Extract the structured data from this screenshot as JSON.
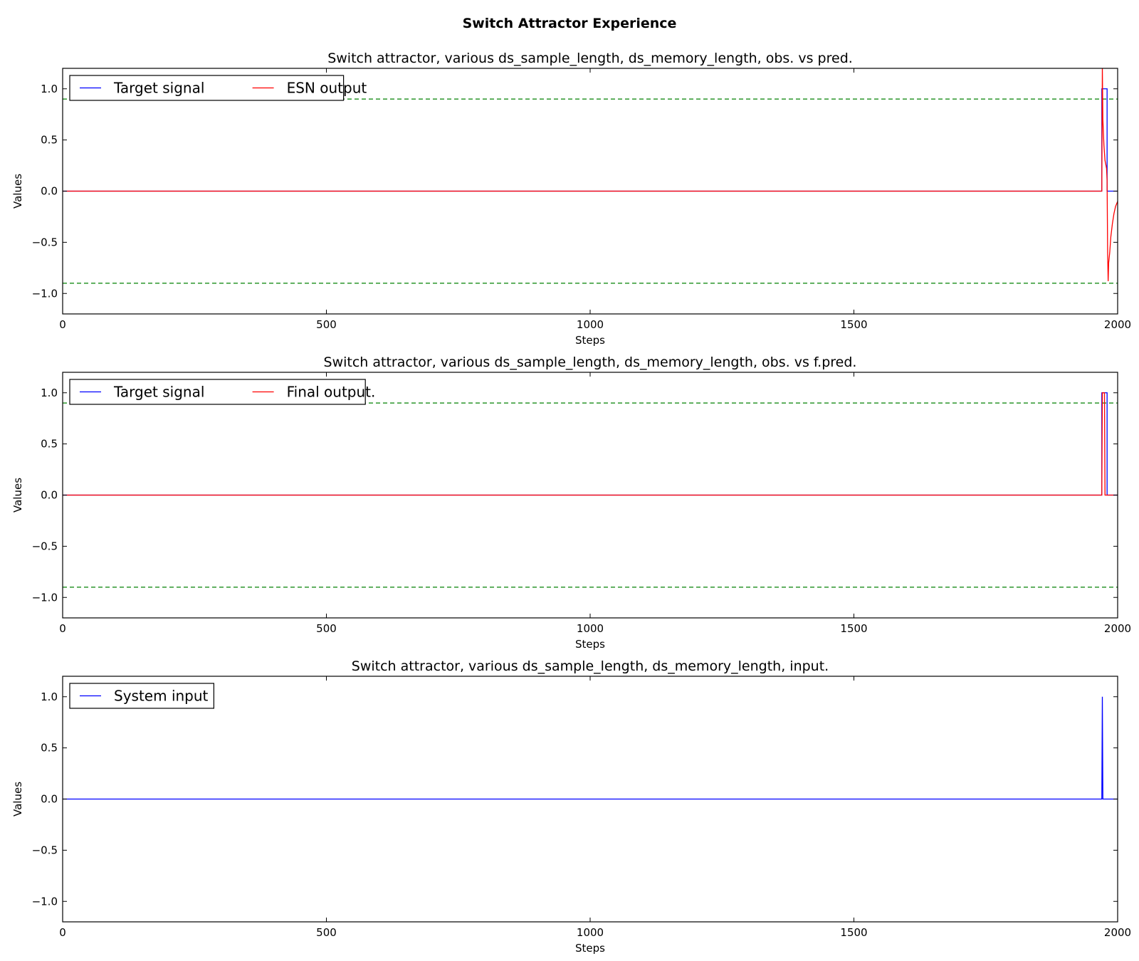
{
  "figure_title": "Switch Attractor Experience",
  "colors": {
    "target": "#0000ff",
    "output": "#ff0000",
    "threshold": "#008000",
    "axes": "#000000"
  },
  "chart_data": [
    {
      "type": "line",
      "title": "Switch attractor, various ds_sample_length, ds_memory_length, obs. vs pred.",
      "xlabel": "Steps",
      "ylabel": "Values",
      "xlim": [
        0,
        2000
      ],
      "ylim": [
        -1.2,
        1.2
      ],
      "xticks": [
        0,
        500,
        1000,
        1500,
        2000
      ],
      "yticks": [
        1.0,
        0.5,
        0.0,
        -0.5,
        -1.0
      ],
      "ytick_labels": [
        "1.0",
        "0.5",
        "0.0",
        "−0.5",
        "−1.0"
      ],
      "grid": false,
      "legend_position": "upper-left",
      "legend_columns": 2,
      "thresholds": [
        0.9,
        -0.9
      ],
      "series": [
        {
          "name": "Target signal",
          "color": "#0000ff",
          "x": [
            0,
            1970,
            1970,
            1980,
            1980,
            2000
          ],
          "y": [
            0,
            0,
            1.0,
            1.0,
            0,
            0
          ]
        },
        {
          "name": "ESN output",
          "color": "#ff0000",
          "x": [
            0,
            1970,
            1971,
            1972,
            1974,
            1976,
            1978,
            1979,
            1980,
            1981,
            1982,
            1983,
            1985,
            1987,
            1990,
            1993,
            1996,
            2000
          ],
          "y": [
            0,
            0,
            1.2,
            0.7,
            0.45,
            0.3,
            0.25,
            0.22,
            0.1,
            -0.6,
            -0.88,
            -0.7,
            -0.6,
            -0.45,
            -0.32,
            -0.22,
            -0.15,
            -0.1
          ]
        }
      ]
    },
    {
      "type": "line",
      "title": "Switch attractor, various ds_sample_length, ds_memory_length, obs. vs f.pred.",
      "xlabel": "Steps",
      "ylabel": "Values",
      "xlim": [
        0,
        2000
      ],
      "ylim": [
        -1.2,
        1.2
      ],
      "xticks": [
        0,
        500,
        1000,
        1500,
        2000
      ],
      "yticks": [
        1.0,
        0.5,
        0.0,
        -0.5,
        -1.0
      ],
      "ytick_labels": [
        "1.0",
        "0.5",
        "0.0",
        "−0.5",
        "−1.0"
      ],
      "grid": false,
      "legend_position": "upper-left",
      "legend_columns": 2,
      "thresholds": [
        0.9,
        -0.9
      ],
      "series": [
        {
          "name": "Target signal",
          "color": "#0000ff",
          "x": [
            0,
            1970,
            1970,
            1980,
            1980,
            2000
          ],
          "y": [
            0,
            0,
            1.0,
            1.0,
            0,
            0
          ]
        },
        {
          "name": "Final output.",
          "color": "#ff0000",
          "x": [
            0,
            1970,
            1971,
            1975,
            1976,
            2000
          ],
          "y": [
            0,
            0,
            1.0,
            1.0,
            0,
            0
          ]
        }
      ]
    },
    {
      "type": "line",
      "title": "Switch attractor, various ds_sample_length, ds_memory_length, input.",
      "xlabel": "Steps",
      "ylabel": "Values",
      "xlim": [
        0,
        2000
      ],
      "ylim": [
        -1.2,
        1.2
      ],
      "xticks": [
        0,
        500,
        1000,
        1500,
        2000
      ],
      "yticks": [
        1.0,
        0.5,
        0.0,
        -0.5,
        -1.0
      ],
      "ytick_labels": [
        "1.0",
        "0.5",
        "0.0",
        "−0.5",
        "−1.0"
      ],
      "grid": false,
      "legend_position": "upper-left",
      "legend_columns": 1,
      "thresholds": [],
      "series": [
        {
          "name": "System input",
          "color": "#0000ff",
          "x": [
            0,
            1970,
            1971,
            1972,
            2000
          ],
          "y": [
            0,
            0,
            1.0,
            0,
            0
          ]
        }
      ]
    }
  ]
}
